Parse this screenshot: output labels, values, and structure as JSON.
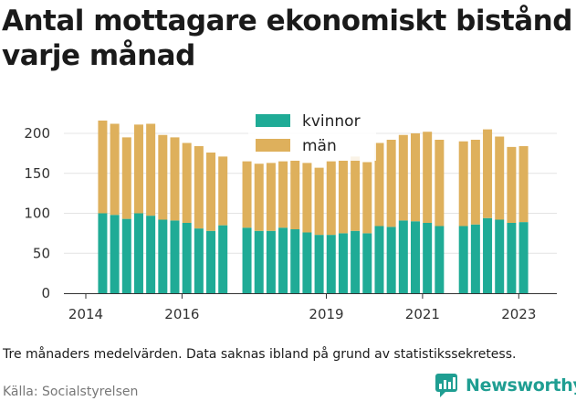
{
  "title": "Antal mottagare ekonomiskt bistånd varje månad",
  "note": "Tre månaders medelvärden. Data saknas ibland på grund av statistikssekretess.",
  "source": "Källa: Socialstyrelsen",
  "brand": "Newsworthy",
  "colors": {
    "kvinnor": "#1fab96",
    "man": "#deb05c",
    "brand": "#1f9e92"
  },
  "chart_data": {
    "type": "bar",
    "stacked": true,
    "ylim": [
      0,
      200
    ],
    "yticks": [
      "0",
      "50",
      "100",
      "150",
      "200"
    ],
    "xticks": [
      "2014",
      "2016",
      "2019",
      "2021",
      "2023"
    ],
    "legend_position": "top-center",
    "grid": "horizontal",
    "x": [
      2014.35,
      2014.6,
      2014.85,
      2015.1,
      2015.35,
      2015.6,
      2015.85,
      2016.1,
      2016.35,
      2016.6,
      2016.85,
      2017.35,
      2017.6,
      2017.85,
      2018.1,
      2018.35,
      2018.6,
      2018.85,
      2019.1,
      2019.35,
      2019.6,
      2019.85,
      2020.1,
      2020.35,
      2020.6,
      2020.85,
      2021.1,
      2021.35,
      2021.85,
      2022.1,
      2022.35,
      2022.6,
      2022.85,
      2023.1
    ],
    "series": [
      {
        "name": "kvinnor",
        "values": [
          100,
          98,
          93,
          100,
          97,
          92,
          91,
          88,
          81,
          78,
          85,
          82,
          78,
          78,
          82,
          80,
          76,
          73,
          73,
          75,
          78,
          75,
          84,
          83,
          91,
          90,
          88,
          84,
          84,
          86,
          94,
          92,
          88,
          89
        ]
      },
      {
        "name": "män",
        "values": [
          116,
          114,
          102,
          111,
          115,
          106,
          104,
          100,
          103,
          98,
          86,
          83,
          84,
          85,
          83,
          86,
          87,
          84,
          92,
          91,
          93,
          89,
          104,
          109,
          107,
          110,
          114,
          108,
          106,
          106,
          111,
          104,
          95,
          95
        ]
      }
    ]
  }
}
